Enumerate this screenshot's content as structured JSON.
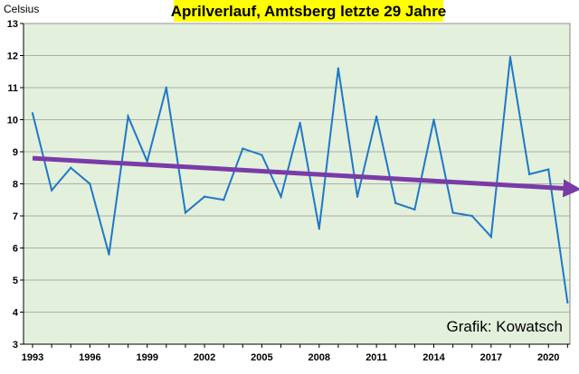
{
  "chart_data": {
    "type": "line",
    "title": "Aprilverlauf,  Amtsberg letzte 29 Jahre",
    "ylabel": "Celsius",
    "xlabel": "",
    "annotation": "Grafik: Kowatsch",
    "ylim": [
      3,
      13
    ],
    "xlim": [
      1993,
      2021
    ],
    "y_ticks": [
      3,
      4,
      5,
      6,
      7,
      8,
      9,
      10,
      11,
      12,
      13
    ],
    "x_ticks": [
      1993,
      1996,
      1999,
      2002,
      2005,
      2008,
      2011,
      2014,
      2017,
      2020
    ],
    "grid": "horizontal",
    "colors": {
      "plot_background": "#e3f0dc",
      "grid": "#999999",
      "series": "#1f78c8",
      "trend": "#7a3ba8",
      "title_background": "#ffff00"
    },
    "x": [
      1993,
      1994,
      1995,
      1996,
      1997,
      1998,
      1999,
      2000,
      2001,
      2002,
      2003,
      2004,
      2005,
      2006,
      2007,
      2008,
      2009,
      2010,
      2011,
      2012,
      2013,
      2014,
      2015,
      2016,
      2017,
      2018,
      2019,
      2020,
      2021
    ],
    "series": [
      {
        "values": [
          10.2,
          7.8,
          8.5,
          8.0,
          5.8,
          10.1,
          8.7,
          11.0,
          7.1,
          7.6,
          7.5,
          9.1,
          8.9,
          7.6,
          9.9,
          6.6,
          11.6,
          7.6,
          10.1,
          7.4,
          7.2,
          10.0,
          7.1,
          7.0,
          6.35,
          11.95,
          8.3,
          8.45,
          4.3
        ]
      }
    ],
    "trend": {
      "x": [
        1993,
        2021.6
      ],
      "y": [
        8.8,
        7.85
      ]
    }
  }
}
